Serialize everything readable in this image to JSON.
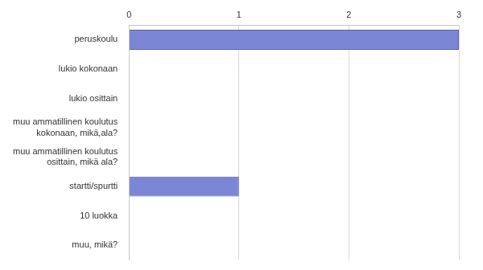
{
  "chart_data": {
    "type": "bar",
    "orientation": "horizontal",
    "categories": [
      "peruskoulu",
      "lukio kokonaan",
      "lukio osittain",
      "muu ammatillinen koulutus kokonaan, mikä,ala?",
      "muu ammatillinen koulutus osittain, mikä ala?",
      "startti/spurtti",
      "10 luokka",
      "muu, mikä?"
    ],
    "values": [
      3,
      0,
      0,
      0,
      0,
      1,
      0,
      0
    ],
    "color": "#7b86d4",
    "xlim": [
      0,
      3
    ],
    "xticks": [
      0,
      1,
      2,
      3
    ],
    "grid": true
  }
}
